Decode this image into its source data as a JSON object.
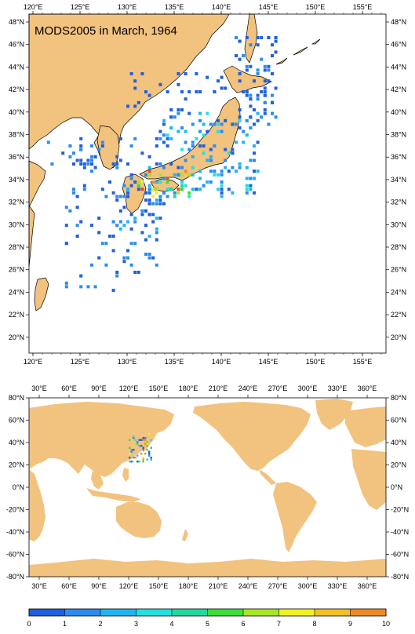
{
  "map_title": "MODS2005 in March, 1964",
  "regional_map": {
    "lon_labels": [
      "120°E",
      "125°E",
      "130°E",
      "135°E",
      "140°E",
      "145°E",
      "150°E",
      "155°E"
    ],
    "lat_labels": [
      "48°N",
      "46°N",
      "44°N",
      "42°N",
      "40°N",
      "38°N",
      "36°N",
      "34°N",
      "32°N",
      "30°N",
      "28°N",
      "26°N",
      "24°N",
      "22°N",
      "20°N"
    ]
  },
  "global_map": {
    "lon_labels": [
      "30°E",
      "60°E",
      "90°E",
      "120°E",
      "150°E",
      "180°E",
      "210°E",
      "240°E",
      "270°E",
      "300°E",
      "330°E",
      "360°E"
    ],
    "lat_labels": [
      "80°N",
      "60°N",
      "40°N",
      "20°N",
      "0°N",
      "-20°N",
      "-40°N",
      "-60°N",
      "-80°N"
    ]
  },
  "colorbar": {
    "labels": [
      "0",
      "1",
      "2",
      "3",
      "4",
      "5",
      "6",
      "7",
      "8",
      "9",
      "10"
    ],
    "colors": [
      "#1f5fe0",
      "#2a8cf0",
      "#1fb6f0",
      "#22e0e0",
      "#22d8a0",
      "#3ae03a",
      "#a6e622",
      "#f2f222",
      "#f2c022",
      "#f28a22",
      "#e84a1a"
    ]
  },
  "colors": {
    "land": "#f2c27f",
    "ocean": "#ffffff",
    "coast": "#000000"
  }
}
